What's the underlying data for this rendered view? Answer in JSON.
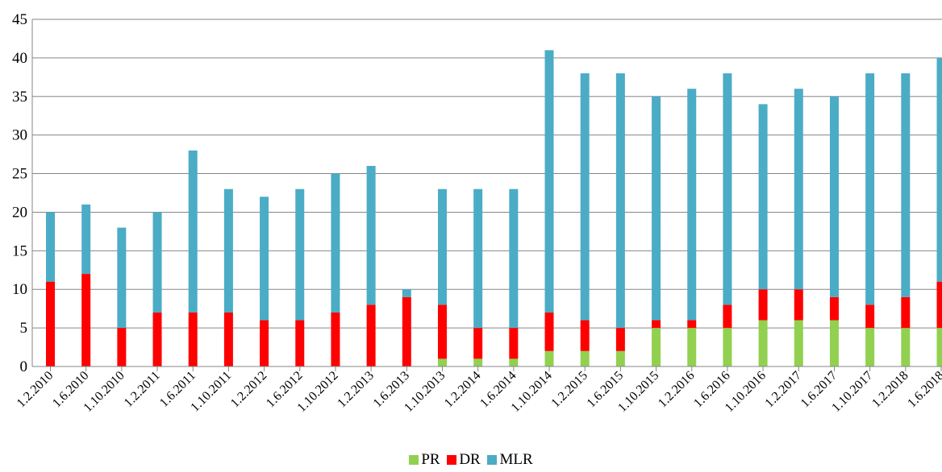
{
  "chart_data": {
    "type": "bar",
    "stacked": true,
    "categories": [
      "1.2.2010",
      "1.6.2010",
      "1.10.2010",
      "1.2.2011",
      "1.6.2011",
      "1.10.2011",
      "1.2.2012",
      "1.6.2012",
      "1.10.2012",
      "1.2.2013",
      "1.6.2013",
      "1.10.2013",
      "1.2.2014",
      "1.6.2014",
      "1.10.2014",
      "1.2.2015",
      "1.6.2015",
      "1.10.2015",
      "1.2.2016",
      "1.6.2016",
      "1.10.2016",
      "1.2.2017",
      "1.6.2017",
      "1.10.2017",
      "1.2.2018",
      "1.6.2018"
    ],
    "series": [
      {
        "name": "PR",
        "color": "#92d050",
        "values": [
          0,
          0,
          0,
          0,
          0,
          0,
          0,
          0,
          0,
          0,
          0,
          1,
          1,
          1,
          2,
          2,
          2,
          5,
          5,
          5,
          6,
          6,
          6,
          5,
          5,
          5
        ]
      },
      {
        "name": "DR",
        "color": "#ff0000",
        "values": [
          11,
          12,
          5,
          7,
          7,
          7,
          6,
          6,
          7,
          8,
          9,
          7,
          4,
          4,
          5,
          4,
          3,
          1,
          1,
          3,
          4,
          4,
          3,
          3,
          4,
          6
        ]
      },
      {
        "name": "MLR",
        "color": "#4bacc6",
        "values": [
          9,
          9,
          13,
          13,
          21,
          16,
          16,
          17,
          18,
          18,
          1,
          15,
          18,
          18,
          34,
          32,
          33,
          29,
          30,
          30,
          24,
          26,
          26,
          30,
          29,
          29
        ]
      }
    ],
    "ylim": [
      0,
      45
    ],
    "yticks": [
      0,
      5,
      10,
      15,
      20,
      25,
      30,
      35,
      40,
      45
    ],
    "grid": true,
    "legend_position": "bottom"
  }
}
